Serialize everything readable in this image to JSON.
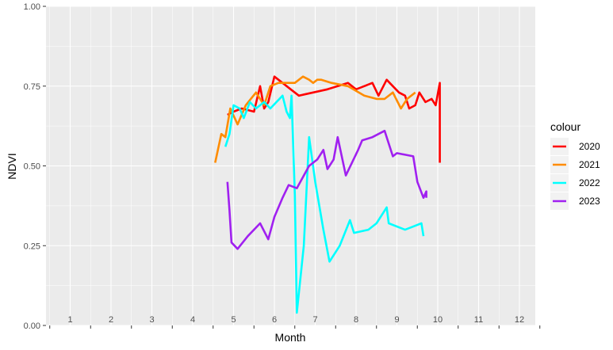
{
  "chart_data": {
    "type": "line",
    "title": "",
    "xlabel": "Month",
    "ylabel": "NDVI",
    "xlim": [
      0,
      12
    ],
    "ylim": [
      0,
      1
    ],
    "x_ticks": [
      1,
      2,
      3,
      4,
      5,
      6,
      7,
      8,
      9,
      10,
      11,
      12
    ],
    "y_ticks": [
      "0.00",
      "0.25",
      "0.50",
      "0.75",
      "1.00"
    ],
    "grid": true,
    "legend_title": "colour",
    "legend_position": "right",
    "series": [
      {
        "name": "2020",
        "color": "#ff0000",
        "points": [
          [
            4.85,
            0.66
          ],
          [
            5.0,
            0.67
          ],
          [
            5.2,
            0.68
          ],
          [
            5.5,
            0.67
          ],
          [
            5.65,
            0.75
          ],
          [
            5.75,
            0.68
          ],
          [
            5.85,
            0.7
          ],
          [
            6.0,
            0.78
          ],
          [
            6.2,
            0.76
          ],
          [
            6.4,
            0.74
          ],
          [
            6.6,
            0.72
          ],
          [
            7.3,
            0.74
          ],
          [
            7.8,
            0.76
          ],
          [
            8.0,
            0.74
          ],
          [
            8.2,
            0.75
          ],
          [
            8.4,
            0.76
          ],
          [
            8.55,
            0.72
          ],
          [
            8.75,
            0.77
          ],
          [
            8.9,
            0.75
          ],
          [
            9.05,
            0.73
          ],
          [
            9.2,
            0.72
          ],
          [
            9.3,
            0.68
          ],
          [
            9.45,
            0.69
          ],
          [
            9.55,
            0.73
          ],
          [
            9.7,
            0.7
          ],
          [
            9.85,
            0.71
          ],
          [
            9.95,
            0.69
          ],
          [
            10.05,
            0.76
          ],
          [
            10.05,
            0.63
          ],
          [
            10.05,
            0.51
          ]
        ]
      },
      {
        "name": "2021",
        "color": "#ff8c00",
        "points": [
          [
            4.55,
            0.51
          ],
          [
            4.7,
            0.6
          ],
          [
            4.8,
            0.59
          ],
          [
            4.92,
            0.68
          ],
          [
            5.1,
            0.63
          ],
          [
            5.3,
            0.69
          ],
          [
            5.55,
            0.73
          ],
          [
            5.75,
            0.69
          ],
          [
            5.9,
            0.75
          ],
          [
            6.1,
            0.76
          ],
          [
            6.35,
            0.76
          ],
          [
            6.5,
            0.76
          ],
          [
            6.7,
            0.78
          ],
          [
            6.85,
            0.77
          ],
          [
            6.95,
            0.76
          ],
          [
            7.05,
            0.77
          ],
          [
            7.15,
            0.77
          ],
          [
            7.4,
            0.76
          ],
          [
            7.8,
            0.75
          ],
          [
            8.2,
            0.72
          ],
          [
            8.5,
            0.71
          ],
          [
            8.7,
            0.71
          ],
          [
            8.9,
            0.73
          ],
          [
            9.1,
            0.68
          ],
          [
            9.25,
            0.71
          ],
          [
            9.45,
            0.73
          ]
        ]
      },
      {
        "name": "2022",
        "color": "#00ffff",
        "points": [
          [
            4.8,
            0.56
          ],
          [
            4.9,
            0.6
          ],
          [
            5.0,
            0.69
          ],
          [
            5.15,
            0.68
          ],
          [
            5.25,
            0.65
          ],
          [
            5.4,
            0.7
          ],
          [
            5.55,
            0.68
          ],
          [
            5.75,
            0.7
          ],
          [
            5.9,
            0.68
          ],
          [
            6.05,
            0.7
          ],
          [
            6.2,
            0.72
          ],
          [
            6.3,
            0.67
          ],
          [
            6.38,
            0.65
          ],
          [
            6.42,
            0.72
          ],
          [
            6.5,
            0.41
          ],
          [
            6.55,
            0.04
          ],
          [
            6.72,
            0.25
          ],
          [
            6.85,
            0.59
          ],
          [
            7.0,
            0.45
          ],
          [
            7.2,
            0.3
          ],
          [
            7.35,
            0.2
          ],
          [
            7.6,
            0.25
          ],
          [
            7.85,
            0.33
          ],
          [
            7.95,
            0.29
          ],
          [
            8.3,
            0.3
          ],
          [
            8.5,
            0.32
          ],
          [
            8.75,
            0.37
          ],
          [
            8.8,
            0.32
          ],
          [
            9.2,
            0.3
          ],
          [
            9.4,
            0.31
          ],
          [
            9.6,
            0.32
          ],
          [
            9.65,
            0.28
          ]
        ]
      },
      {
        "name": "2023",
        "color": "#a020f0",
        "points": [
          [
            4.85,
            0.45
          ],
          [
            4.9,
            0.36
          ],
          [
            4.95,
            0.26
          ],
          [
            5.1,
            0.24
          ],
          [
            5.35,
            0.28
          ],
          [
            5.65,
            0.32
          ],
          [
            5.85,
            0.27
          ],
          [
            6.0,
            0.34
          ],
          [
            6.2,
            0.4
          ],
          [
            6.35,
            0.44
          ],
          [
            6.55,
            0.43
          ],
          [
            6.85,
            0.5
          ],
          [
            7.05,
            0.52
          ],
          [
            7.2,
            0.55
          ],
          [
            7.3,
            0.49
          ],
          [
            7.45,
            0.52
          ],
          [
            7.55,
            0.59
          ],
          [
            7.75,
            0.47
          ],
          [
            8.05,
            0.55
          ],
          [
            8.15,
            0.58
          ],
          [
            8.4,
            0.59
          ],
          [
            8.7,
            0.61
          ],
          [
            8.9,
            0.53
          ],
          [
            9.0,
            0.54
          ],
          [
            9.4,
            0.53
          ],
          [
            9.5,
            0.45
          ],
          [
            9.65,
            0.4
          ],
          [
            9.72,
            0.42
          ],
          [
            9.72,
            0.4
          ]
        ]
      }
    ]
  }
}
